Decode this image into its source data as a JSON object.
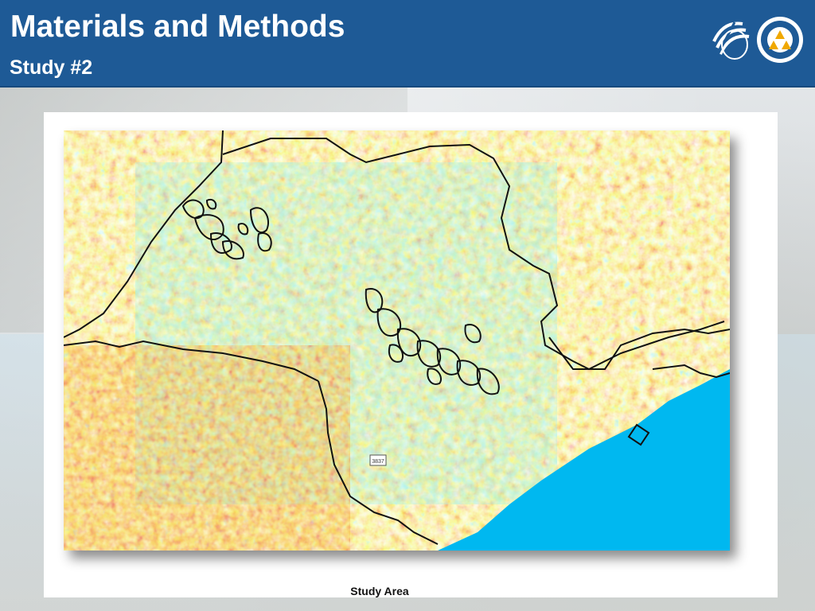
{
  "header": {
    "title": "Materials and Methods",
    "subtitle": "Study #2"
  },
  "logos": [
    {
      "icon": "institution-logo-stripes-icon",
      "color": "#ffffff"
    },
    {
      "icon": "university-seal-icon",
      "color": "#f0a800"
    }
  ],
  "figure": {
    "map_label": "3837",
    "caption": "Study Area",
    "colors": {
      "cyan": "#57dcd4",
      "yellow": "#e8f02a",
      "orange": "#f08a18",
      "red": "#d8281a",
      "ocean": "#00b8f0",
      "boundary": "#111111"
    }
  }
}
